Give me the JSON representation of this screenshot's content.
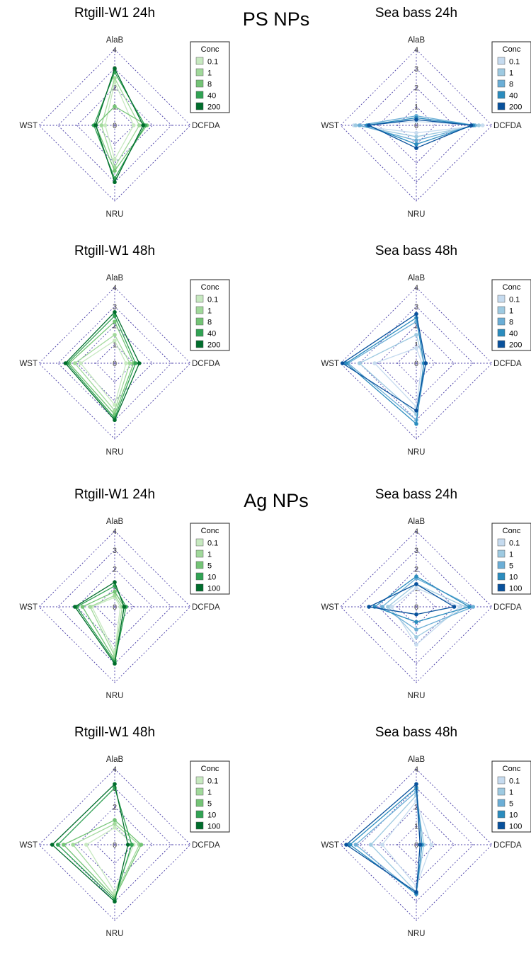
{
  "section_headings": [
    "PS NPs",
    "Ag NPs"
  ],
  "chart_data": [
    {
      "type": "radar",
      "title": "Rtgill-W1 24h",
      "section": "PS NPs",
      "axes": [
        "AlaB",
        "DCFDA",
        "NRU",
        "WST"
      ],
      "ticks": [
        "0",
        "1",
        "2",
        "3",
        "4"
      ],
      "rlim": [
        0,
        4
      ],
      "legend": {
        "title": "Conc",
        "position": "top-right"
      },
      "palette": "green",
      "series": [
        {
          "name": "0.1",
          "color": "#c7e9c0",
          "values": [
            2.3,
            1.0,
            1.8,
            0.5
          ]
        },
        {
          "name": "1",
          "color": "#a1d99b",
          "values": [
            2.5,
            1.3,
            2.2,
            0.7
          ]
        },
        {
          "name": "8",
          "color": "#74c476",
          "values": [
            1.0,
            1.7,
            2.4,
            1.0
          ]
        },
        {
          "name": "40",
          "color": "#31a354",
          "values": [
            2.8,
            1.6,
            2.8,
            1.1
          ]
        },
        {
          "name": "200",
          "color": "#006d2c",
          "values": [
            3.0,
            1.5,
            3.0,
            1.0
          ]
        }
      ]
    },
    {
      "type": "radar",
      "title": "Sea bass 24h",
      "section": "PS NPs",
      "axes": [
        "AlaB",
        "DCFDA",
        "NRU",
        "WST"
      ],
      "ticks": [
        "0",
        "1",
        "2",
        "3",
        "4"
      ],
      "rlim": [
        0,
        4
      ],
      "legend": {
        "title": "Conc",
        "position": "top-right"
      },
      "palette": "blue",
      "series": [
        {
          "name": "0.1",
          "color": "#c6dbef",
          "values": [
            0.2,
            3.5,
            0.4,
            3.3
          ]
        },
        {
          "name": "1",
          "color": "#9ecae1",
          "values": [
            0.3,
            3.3,
            0.6,
            3.2
          ]
        },
        {
          "name": "8",
          "color": "#6baed6",
          "values": [
            0.5,
            3.1,
            0.8,
            3.0
          ]
        },
        {
          "name": "40",
          "color": "#2b8cbe",
          "values": [
            0.4,
            3.0,
            1.0,
            2.6
          ]
        },
        {
          "name": "200",
          "color": "#08519c",
          "values": [
            0.3,
            2.9,
            1.2,
            2.5
          ]
        }
      ]
    },
    {
      "type": "radar",
      "title": "Rtgill-W1 48h",
      "section": "PS NPs",
      "axes": [
        "AlaB",
        "DCFDA",
        "NRU",
        "WST"
      ],
      "ticks": [
        "0",
        "1",
        "2",
        "3",
        "4"
      ],
      "rlim": [
        0,
        4
      ],
      "legend": {
        "title": "Conc",
        "position": "top-right"
      },
      "palette": "green",
      "series": [
        {
          "name": "0.1",
          "color": "#c7e9c0",
          "values": [
            1.2,
            0.6,
            2.2,
            1.8
          ]
        },
        {
          "name": "1",
          "color": "#a1d99b",
          "values": [
            1.5,
            0.8,
            2.5,
            2.1
          ]
        },
        {
          "name": "8",
          "color": "#74c476",
          "values": [
            2.2,
            1.0,
            2.7,
            2.4
          ]
        },
        {
          "name": "40",
          "color": "#31a354",
          "values": [
            2.5,
            1.1,
            2.9,
            2.5
          ]
        },
        {
          "name": "200",
          "color": "#006d2c",
          "values": [
            2.7,
            1.3,
            3.0,
            2.6
          ]
        }
      ]
    },
    {
      "type": "radar",
      "title": "Sea bass 48h",
      "section": "PS NPs",
      "axes": [
        "AlaB",
        "DCFDA",
        "NRU",
        "WST"
      ],
      "ticks": [
        "0",
        "1",
        "2",
        "3",
        "4"
      ],
      "rlim": [
        0,
        4
      ],
      "legend": {
        "title": "Conc",
        "position": "top-right"
      },
      "palette": "blue",
      "series": [
        {
          "name": "0.1",
          "color": "#c6dbef",
          "values": [
            0.8,
            0.3,
            2.3,
            2.2
          ]
        },
        {
          "name": "1",
          "color": "#9ecae1",
          "values": [
            1.5,
            0.4,
            2.7,
            3.0
          ]
        },
        {
          "name": "8",
          "color": "#6baed6",
          "values": [
            2.2,
            0.5,
            3.0,
            3.6
          ]
        },
        {
          "name": "40",
          "color": "#2b8cbe",
          "values": [
            2.4,
            0.4,
            3.2,
            3.7
          ]
        },
        {
          "name": "200",
          "color": "#08519c",
          "values": [
            2.6,
            0.5,
            2.5,
            3.9
          ]
        }
      ]
    },
    {
      "type": "radar",
      "title": "Rtgill-W1 24h",
      "section": "Ag NPs",
      "axes": [
        "AlaB",
        "DCFDA",
        "NRU",
        "WST"
      ],
      "ticks": [
        "0",
        "1",
        "2",
        "3",
        "4"
      ],
      "rlim": [
        0,
        4
      ],
      "legend": {
        "title": "Conc",
        "position": "top-right"
      },
      "palette": "green",
      "series": [
        {
          "name": "0.1",
          "color": "#c7e9c0",
          "values": [
            0.5,
            0.3,
            2.4,
            1.2
          ]
        },
        {
          "name": "1",
          "color": "#a1d99b",
          "values": [
            0.6,
            0.4,
            2.6,
            1.3
          ]
        },
        {
          "name": "5",
          "color": "#74c476",
          "values": [
            0.8,
            0.5,
            2.8,
            1.7
          ]
        },
        {
          "name": "10",
          "color": "#31a354",
          "values": [
            1.1,
            0.6,
            2.9,
            2.0
          ]
        },
        {
          "name": "100",
          "color": "#006d2c",
          "values": [
            1.3,
            0.5,
            3.0,
            2.1
          ]
        }
      ]
    },
    {
      "type": "radar",
      "title": "Sea bass 24h",
      "section": "Ag NPs",
      "axes": [
        "AlaB",
        "DCFDA",
        "NRU",
        "WST"
      ],
      "ticks": [
        "0",
        "1",
        "2",
        "3",
        "4"
      ],
      "rlim": [
        0,
        4
      ],
      "legend": {
        "title": "Conc",
        "position": "top-right"
      },
      "palette": "blue",
      "series": [
        {
          "name": "0.1",
          "color": "#c6dbef",
          "values": [
            1.0,
            2.3,
            2.0,
            1.3
          ]
        },
        {
          "name": "1",
          "color": "#9ecae1",
          "values": [
            1.2,
            2.6,
            1.6,
            1.5
          ]
        },
        {
          "name": "5",
          "color": "#6baed6",
          "values": [
            1.5,
            3.0,
            1.2,
            1.8
          ]
        },
        {
          "name": "10",
          "color": "#2b8cbe",
          "values": [
            1.6,
            2.8,
            0.8,
            2.2
          ]
        },
        {
          "name": "100",
          "color": "#08519c",
          "values": [
            1.2,
            2.0,
            0.4,
            2.5
          ]
        }
      ]
    },
    {
      "type": "radar",
      "title": "Rtgill-W1 48h",
      "section": "Ag NPs",
      "axes": [
        "AlaB",
        "DCFDA",
        "NRU",
        "WST"
      ],
      "ticks": [
        "0",
        "1",
        "2",
        "3",
        "4"
      ],
      "rlim": [
        0,
        4
      ],
      "legend": {
        "title": "Conc",
        "position": "top-right"
      },
      "palette": "green",
      "series": [
        {
          "name": "0.1",
          "color": "#c7e9c0",
          "values": [
            0.9,
            1.0,
            2.5,
            1.5
          ]
        },
        {
          "name": "1",
          "color": "#a1d99b",
          "values": [
            1.1,
            1.3,
            2.7,
            2.2
          ]
        },
        {
          "name": "5",
          "color": "#74c476",
          "values": [
            1.3,
            1.4,
            2.8,
            2.7
          ]
        },
        {
          "name": "10",
          "color": "#31a354",
          "values": [
            3.0,
            0.9,
            2.9,
            3.0
          ]
        },
        {
          "name": "100",
          "color": "#006d2c",
          "values": [
            3.2,
            0.7,
            3.0,
            3.3
          ]
        }
      ]
    },
    {
      "type": "radar",
      "title": "Sea bass 48h",
      "section": "Ag NPs",
      "axes": [
        "AlaB",
        "DCFDA",
        "NRU",
        "WST"
      ],
      "ticks": [
        "0",
        "1",
        "2",
        "3",
        "4"
      ],
      "rlim": [
        0,
        4
      ],
      "legend": {
        "title": "Conc",
        "position": "top-right"
      },
      "palette": "blue",
      "series": [
        {
          "name": "0.1",
          "color": "#c6dbef",
          "values": [
            2.3,
            0.8,
            2.2,
            1.8
          ]
        },
        {
          "name": "1",
          "color": "#9ecae1",
          "values": [
            2.6,
            0.4,
            2.5,
            2.4
          ]
        },
        {
          "name": "5",
          "color": "#6baed6",
          "values": [
            2.8,
            0.2,
            2.6,
            3.2
          ]
        },
        {
          "name": "10",
          "color": "#2b8cbe",
          "values": [
            3.0,
            0.3,
            2.6,
            3.5
          ]
        },
        {
          "name": "100",
          "color": "#08519c",
          "values": [
            3.2,
            0.2,
            2.5,
            3.7
          ]
        }
      ]
    }
  ]
}
